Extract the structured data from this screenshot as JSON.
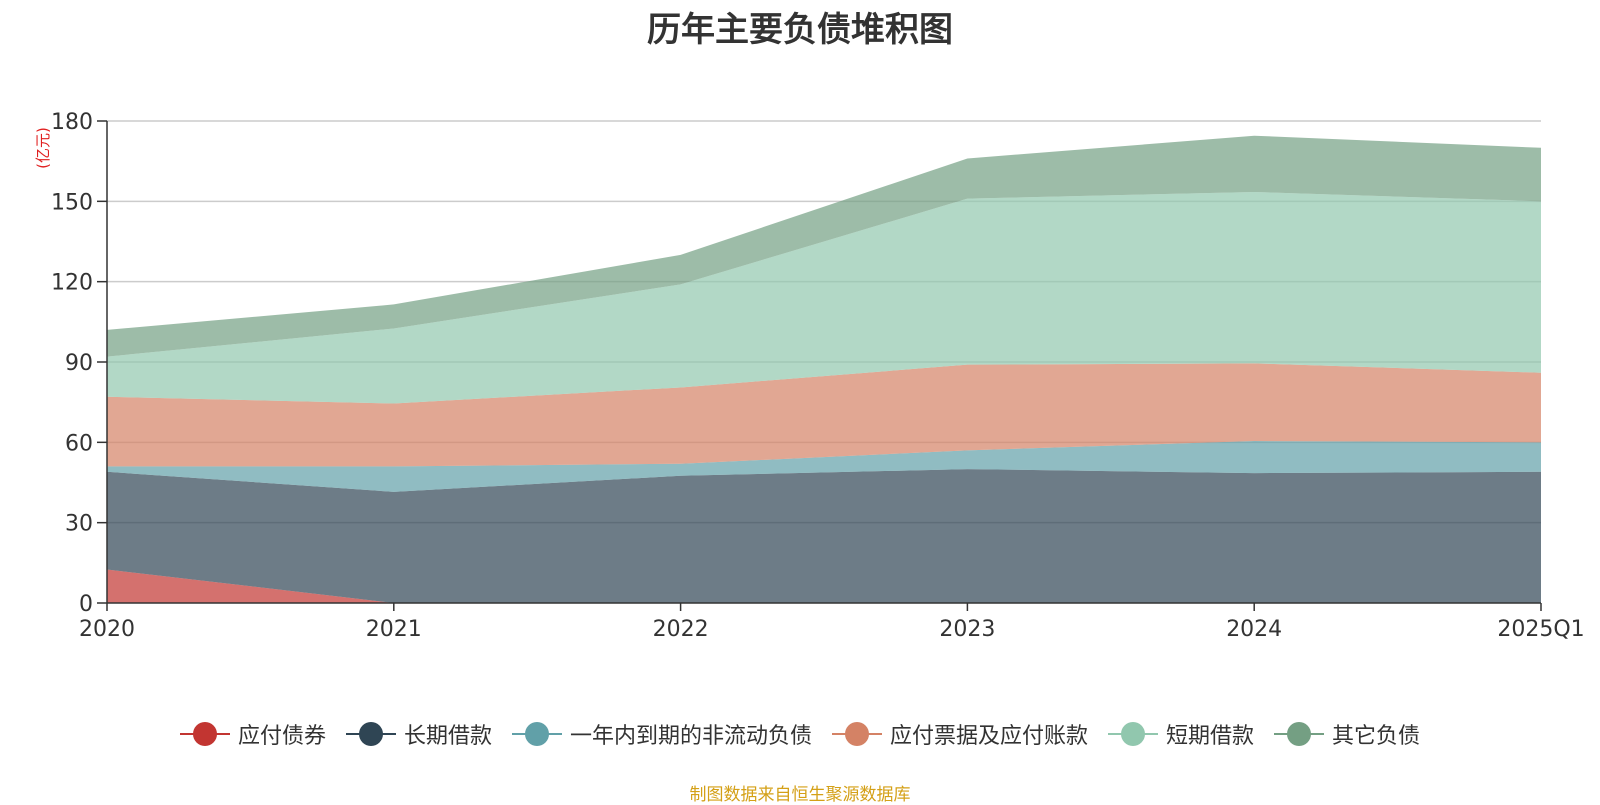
{
  "chart_data": {
    "type": "area",
    "stacked": true,
    "title": "历年主要负债堆积图",
    "unit": "(亿元)",
    "categories": [
      "2020",
      "2021",
      "2022",
      "2023",
      "2024",
      "2025Q1"
    ],
    "ylim": [
      0,
      180
    ],
    "yticks": [
      0,
      30,
      60,
      90,
      120,
      150,
      180
    ],
    "grid": true,
    "legend_position": "bottom",
    "series": [
      {
        "name": "应付债券",
        "color": "#c23531",
        "values": [
          12.5,
          0,
          0,
          0,
          0,
          0
        ]
      },
      {
        "name": "长期借款",
        "color": "#2f4554",
        "values": [
          36.5,
          41.5,
          47.5,
          50,
          48.5,
          49
        ]
      },
      {
        "name": "一年内到期的非流动负债",
        "color": "#61a0a8",
        "values": [
          2,
          9.5,
          4.5,
          7,
          12,
          11
        ]
      },
      {
        "name": "应付票据及应付账款",
        "color": "#d48265",
        "values": [
          26,
          23.5,
          28.5,
          32,
          29,
          26
        ]
      },
      {
        "name": "短期借款",
        "color": "#91c7ae",
        "values": [
          15,
          28,
          38.5,
          62,
          64,
          64
        ]
      },
      {
        "name": "其它负债",
        "color": "#749f83",
        "values": [
          10,
          9,
          11,
          15,
          21,
          20
        ]
      }
    ]
  },
  "source_note": "制图数据来自恒生聚源数据库"
}
